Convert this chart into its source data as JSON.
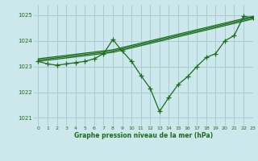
{
  "title": "Graphe pression niveau de la mer (hPa)",
  "background_color": "#cce8ec",
  "grid_color": "#aacccc",
  "line_color": "#1a6b1a",
  "xlim": [
    -0.5,
    23
  ],
  "ylim": [
    1020.7,
    1025.4
  ],
  "yticks": [
    1021,
    1022,
    1023,
    1024,
    1025
  ],
  "xticks": [
    0,
    1,
    2,
    3,
    4,
    5,
    6,
    7,
    8,
    9,
    10,
    11,
    12,
    13,
    14,
    15,
    16,
    17,
    18,
    19,
    20,
    21,
    22,
    23
  ],
  "lines": [
    {
      "x": [
        0,
        1,
        2,
        3,
        4,
        5,
        6,
        7,
        8,
        9,
        10,
        11,
        12,
        13,
        14,
        15,
        16,
        17,
        18,
        19,
        20,
        21,
        22,
        23
      ],
      "y": [
        1023.2,
        1023.1,
        1023.05,
        1023.1,
        1023.15,
        1023.2,
        1023.3,
        1023.5,
        1024.05,
        1023.6,
        1023.2,
        1022.65,
        1022.15,
        1021.25,
        1021.8,
        1022.3,
        1022.6,
        1023.0,
        1023.35,
        1023.5,
        1024.0,
        1024.2,
        1024.95,
        1024.9
      ],
      "marker": true
    },
    {
      "x": [
        0,
        8,
        23
      ],
      "y": [
        1023.2,
        1023.55,
        1024.85
      ],
      "marker": false
    },
    {
      "x": [
        0,
        8,
        23
      ],
      "y": [
        1023.25,
        1023.6,
        1024.9
      ],
      "marker": false
    },
    {
      "x": [
        0,
        8,
        23
      ],
      "y": [
        1023.3,
        1023.65,
        1024.95
      ],
      "marker": false
    }
  ]
}
